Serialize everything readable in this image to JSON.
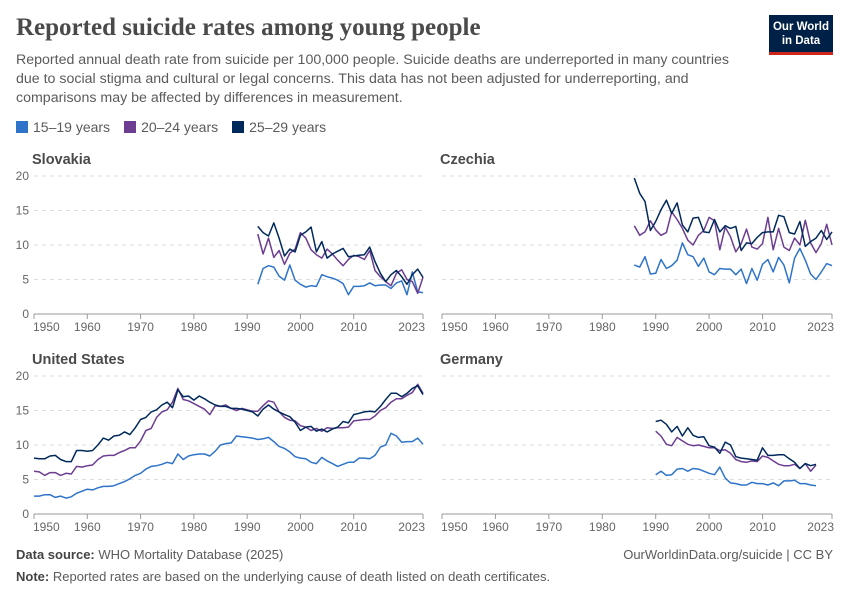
{
  "header": {
    "title": "Reported suicide rates among young people",
    "subtitle": "Reported annual death rate from suicide per 100,000 people. Suicide deaths are underreported in many countries due to social stigma and cultural or legal concerns. This data has not been adjusted for underreporting, and comparisons may be affected by differences in measurement.",
    "logo_line1": "Our World",
    "logo_line2": "in Data"
  },
  "legend": [
    {
      "label": "15–19 years",
      "color": "#2f74c8"
    },
    {
      "label": "20–24 years",
      "color": "#6c3d91"
    },
    {
      "label": "25–29 years",
      "color": "#00295b"
    }
  ],
  "footer": {
    "source_label": "Data source:",
    "source_text": "WHO Mortality Database (2025)",
    "url": "OurWorldinData.org/suicide | CC BY",
    "note_label": "Note:",
    "note_text": "Reported rates are based on the underlying cause of death listed on death certificates."
  },
  "chart_data": [
    {
      "type": "line",
      "title": "Slovakia",
      "xlim": [
        1950,
        2023
      ],
      "ylim": [
        0,
        20
      ],
      "x_ticks": [
        "1950",
        "1960",
        "1970",
        "1980",
        "1990",
        "2000",
        "2010",
        "2023"
      ],
      "y_ticks": [
        "0",
        "5",
        "10",
        "15",
        "20"
      ],
      "grid": true,
      "x_start": 1992,
      "series": [
        {
          "name": "15–19 years",
          "values": [
            4.3,
            6.6,
            7.0,
            6.8,
            5.5,
            4.9,
            7.1,
            4.9,
            4.3,
            3.9,
            4.1,
            4.0,
            5.7,
            5.4,
            5.2,
            4.9,
            4.4,
            2.8,
            4.0,
            4.0,
            4.1,
            4.5,
            4.1,
            4.2,
            4.2,
            3.7,
            4.5,
            4.8,
            2.8,
            6.1,
            3.2,
            3.1
          ]
        },
        {
          "name": "20–24 years",
          "values": [
            11.6,
            8.7,
            11.0,
            8.2,
            9.2,
            7.2,
            8.8,
            9.4,
            11.8,
            11.0,
            9.3,
            8.6,
            8.1,
            9.4,
            8.7,
            7.8,
            7.0,
            7.9,
            8.5,
            8.3,
            7.9,
            9.2,
            6.3,
            5.4,
            4.7,
            4.1,
            5.9,
            6.4,
            5.0,
            4.7,
            3.0,
            5.3
          ]
        },
        {
          "name": "25–29 years",
          "values": [
            12.7,
            11.8,
            11.3,
            13.2,
            11.0,
            8.4,
            9.4,
            9.0,
            11.4,
            11.9,
            12.6,
            9.0,
            10.5,
            8.1,
            8.7,
            9.1,
            9.5,
            8.3,
            8.4,
            8.5,
            8.6,
            9.7,
            7.6,
            5.9,
            4.7,
            5.7,
            6.3,
            5.4,
            4.3,
            5.7,
            6.5,
            5.3
          ]
        }
      ]
    },
    {
      "type": "line",
      "title": "Czechia",
      "xlim": [
        1950,
        2023
      ],
      "ylim": [
        0,
        20
      ],
      "x_ticks": [
        "1950",
        "1960",
        "1970",
        "1980",
        "1990",
        "2000",
        "2010",
        "2023"
      ],
      "y_ticks": [],
      "grid": true,
      "x_start": 1986,
      "series": [
        {
          "name": "15–19 years",
          "values": [
            7.1,
            6.8,
            8.3,
            5.8,
            5.9,
            7.9,
            6.6,
            7.0,
            7.8,
            10.3,
            8.6,
            8.3,
            6.9,
            8.1,
            6.1,
            5.7,
            6.6,
            6.5,
            6.5,
            5.7,
            6.5,
            4.4,
            6.6,
            4.9,
            7.2,
            7.9,
            6.1,
            8.2,
            7.1,
            4.5,
            8.1,
            9.5,
            7.8,
            5.8,
            5.0,
            6.1,
            7.3,
            7.0
          ]
        },
        {
          "name": "20–24 years",
          "values": [
            12.8,
            11.4,
            11.9,
            13.5,
            12.2,
            11.4,
            11.8,
            14.8,
            13.7,
            12.4,
            10.7,
            10.0,
            11.4,
            12.1,
            14.0,
            13.5,
            9.3,
            12.6,
            11.2,
            9.0,
            10.2,
            12.3,
            9.7,
            9.4,
            10.2,
            14.0,
            9.3,
            12.4,
            9.7,
            9.2,
            11.0,
            10.0,
            13.6,
            10.3,
            8.9,
            10.2,
            13.0,
            10.0
          ]
        },
        {
          "name": "25–29 years",
          "values": [
            19.7,
            17.5,
            16.3,
            12.1,
            13.4,
            15.1,
            16.5,
            14.6,
            16.1,
            12.9,
            11.9,
            13.9,
            14.0,
            11.9,
            11.8,
            13.7,
            11.9,
            12.8,
            12.4,
            12.7,
            9.2,
            10.3,
            10.2,
            11.1,
            11.8,
            11.9,
            11.9,
            14.3,
            14.1,
            11.8,
            11.6,
            13.4,
            9.8,
            10.5,
            11.0,
            12.1,
            10.8,
            11.9
          ]
        }
      ]
    },
    {
      "type": "line",
      "title": "United States",
      "xlim": [
        1950,
        2023
      ],
      "ylim": [
        0,
        20
      ],
      "x_ticks": [
        "1950",
        "1960",
        "1970",
        "1980",
        "1990",
        "2000",
        "2010",
        "2023"
      ],
      "y_ticks": [
        "0",
        "5",
        "10",
        "15",
        "20"
      ],
      "grid": true,
      "x_start": 1950,
      "series": [
        {
          "name": "15–19 years",
          "values": [
            2.6,
            2.6,
            2.8,
            2.8,
            2.4,
            2.6,
            2.3,
            2.5,
            3.0,
            3.3,
            3.6,
            3.5,
            3.8,
            4.0,
            4.0,
            4.1,
            4.4,
            4.7,
            5.1,
            5.6,
            5.9,
            6.5,
            6.9,
            7.0,
            7.2,
            7.5,
            7.3,
            8.7,
            7.9,
            8.4,
            8.6,
            8.7,
            8.7,
            8.4,
            9.1,
            10.0,
            10.2,
            10.3,
            11.3,
            11.2,
            11.1,
            11.0,
            10.8,
            10.9,
            11.1,
            10.5,
            9.8,
            9.5,
            9.0,
            8.3,
            8.1,
            8.0,
            7.5,
            7.3,
            8.2,
            7.7,
            7.3,
            6.9,
            7.2,
            7.5,
            7.5,
            8.1,
            8.1,
            8.0,
            8.5,
            9.7,
            10.0,
            11.7,
            11.3,
            10.4,
            10.5,
            10.5,
            11.0,
            10.1
          ]
        },
        {
          "name": "20–24 years",
          "values": [
            6.2,
            6.1,
            5.6,
            6.0,
            6.0,
            5.6,
            5.9,
            5.8,
            6.9,
            6.8,
            7.0,
            7.1,
            7.9,
            8.4,
            8.5,
            8.5,
            8.9,
            9.2,
            9.6,
            9.6,
            10.6,
            12.1,
            12.4,
            14.0,
            14.8,
            15.1,
            16.2,
            18.2,
            16.6,
            16.4,
            16.0,
            15.6,
            15.2,
            14.4,
            15.7,
            15.6,
            15.8,
            15.3,
            15.0,
            15.3,
            15.1,
            14.9,
            14.9,
            15.7,
            16.4,
            16.2,
            14.8,
            14.0,
            13.6,
            13.5,
            12.8,
            12.6,
            12.1,
            12.4,
            12.0,
            12.5,
            12.4,
            12.5,
            12.5,
            12.6,
            13.5,
            13.6,
            13.7,
            13.7,
            14.2,
            15.0,
            15.4,
            16.2,
            16.7,
            16.7,
            17.2,
            17.6,
            18.8,
            17.5
          ]
        },
        {
          "name": "25–29 years",
          "values": [
            8.1,
            8.0,
            8.0,
            8.4,
            8.5,
            7.9,
            7.6,
            7.6,
            9.2,
            9.2,
            9.1,
            9.2,
            10.0,
            11.0,
            10.7,
            11.3,
            11.4,
            11.9,
            11.5,
            12.5,
            13.7,
            14.0,
            14.8,
            15.1,
            15.8,
            16.2,
            15.4,
            18.0,
            17.0,
            17.1,
            16.5,
            17.1,
            16.7,
            16.2,
            15.8,
            15.6,
            15.6,
            15.3,
            15.3,
            15.2,
            15.0,
            14.8,
            14.2,
            15.2,
            15.8,
            15.2,
            14.8,
            14.4,
            14.1,
            13.3,
            12.1,
            12.6,
            12.7,
            12.0,
            12.3,
            11.9,
            12.3,
            12.6,
            13.4,
            13.2,
            14.4,
            14.6,
            14.8,
            14.9,
            14.8,
            15.6,
            16.6,
            17.5,
            17.5,
            17.0,
            17.5,
            18.2,
            18.6,
            17.3
          ]
        }
      ]
    },
    {
      "type": "line",
      "title": "Germany",
      "xlim": [
        1950,
        2023
      ],
      "ylim": [
        0,
        20
      ],
      "x_ticks": [
        "1950",
        "1960",
        "1970",
        "1980",
        "1990",
        "2000",
        "2010",
        "2023"
      ],
      "y_ticks": [],
      "grid": true,
      "x_start": 1990,
      "series": [
        {
          "name": "15–19 years",
          "values": [
            5.7,
            6.2,
            5.6,
            5.7,
            6.5,
            6.6,
            6.2,
            6.6,
            6.5,
            6.2,
            5.9,
            5.7,
            6.8,
            5.2,
            4.5,
            4.4,
            4.2,
            4.2,
            4.6,
            4.4,
            4.4,
            4.2,
            4.5,
            4.1,
            4.8,
            4.8,
            4.9,
            4.4,
            4.4,
            4.2,
            4.1
          ]
        },
        {
          "name": "20–24 years",
          "values": [
            12.0,
            11.3,
            10.1,
            9.9,
            11.1,
            10.6,
            10.1,
            9.9,
            10.0,
            9.8,
            9.6,
            9.6,
            9.2,
            9.3,
            8.8,
            7.9,
            7.6,
            7.5,
            7.7,
            7.6,
            8.4,
            8.2,
            7.7,
            7.2,
            7.0,
            7.0,
            7.2,
            6.6,
            7.3,
            6.2,
            7.1
          ]
        },
        {
          "name": "25–29 years",
          "values": [
            13.4,
            13.6,
            13.0,
            11.9,
            12.7,
            11.3,
            12.5,
            11.4,
            11.1,
            11.2,
            9.9,
            9.7,
            8.8,
            10.4,
            10.0,
            8.3,
            8.1,
            8.0,
            7.9,
            7.8,
            9.6,
            8.5,
            8.5,
            8.6,
            8.6,
            8.0,
            7.5,
            6.6,
            7.3,
            7.0,
            7.2
          ]
        }
      ]
    }
  ]
}
